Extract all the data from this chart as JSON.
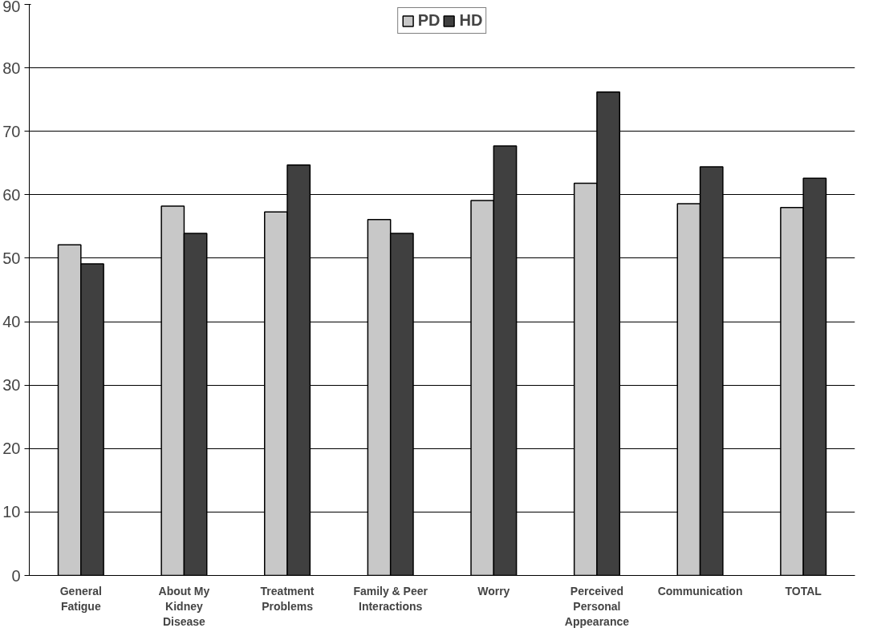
{
  "chart_data": {
    "type": "bar",
    "categories": [
      "General Fatigue",
      "About My Kidney Disease",
      "Treatment Problems",
      "Family & Peer Interactions",
      "Worry",
      "Perceived Personal Appearance",
      "Communication",
      "TOTAL"
    ],
    "series": [
      {
        "name": "PD",
        "color": "#c8c8c8",
        "values": [
          52.1,
          58.2,
          57.3,
          56.1,
          59.1,
          61.8,
          58.6,
          58.0
        ]
      },
      {
        "name": "HD",
        "color": "#404040",
        "values": [
          49.1,
          53.9,
          64.7,
          53.9,
          67.7,
          76.2,
          64.4,
          62.6
        ]
      }
    ],
    "ylim": [
      0,
      90
    ],
    "yticks": [
      0,
      10,
      20,
      30,
      40,
      50,
      60,
      70,
      80,
      90
    ],
    "grid": "y",
    "legend": "top"
  }
}
